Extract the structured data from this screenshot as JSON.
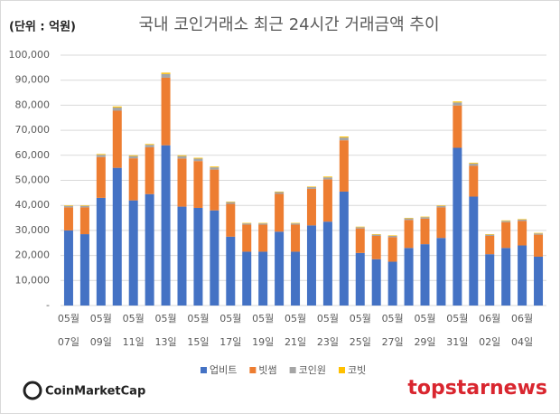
{
  "chart_data": {
    "type": "stacked_bar",
    "title": "국내 코인거래소 최근 24시간 거래금액 추이",
    "unit_label": "(단위 : 억원)",
    "categories": [
      "05월\n07일",
      null,
      "05월\n09일",
      null,
      "05월\n11일",
      null,
      "05월\n13일",
      null,
      "05월\n15일",
      null,
      "05월\n17일",
      null,
      "05월\n19일",
      null,
      "05월\n21일",
      null,
      "05월\n23일",
      null,
      "05월\n25일",
      null,
      "05월\n27일",
      null,
      "05월\n29일",
      null,
      "05월\n31일",
      null,
      "06월\n02일",
      null,
      "06월\n04일",
      null
    ],
    "series": [
      {
        "name": "업비트",
        "color": "#4472c4",
        "values": [
          30000,
          28500,
          43000,
          55000,
          42000,
          44500,
          64000,
          39500,
          39000,
          38000,
          27500,
          21500,
          21500,
          29500,
          21500,
          32000,
          33500,
          45500,
          21000,
          18500,
          17500,
          23000,
          24500,
          27000,
          63000,
          43500,
          20500,
          23000,
          24000,
          19500
        ]
      },
      {
        "name": "빗썸",
        "color": "#ed7d31",
        "values": [
          9200,
          10700,
          16300,
          22800,
          16800,
          18700,
          27000,
          19200,
          18700,
          16300,
          13100,
          10800,
          10800,
          15100,
          10800,
          14600,
          16900,
          20500,
          9800,
          9300,
          9800,
          11200,
          10200,
          12200,
          16900,
          12300,
          7300,
          10300,
          9800,
          8800
        ]
      },
      {
        "name": "코인원",
        "color": "#a5a5a5",
        "values": [
          600,
          600,
          900,
          1300,
          900,
          1000,
          1500,
          1000,
          1000,
          900,
          700,
          500,
          500,
          700,
          500,
          700,
          800,
          1100,
          500,
          500,
          500,
          600,
          600,
          600,
          1200,
          900,
          500,
          500,
          500,
          500
        ]
      },
      {
        "name": "코빗",
        "color": "#ffc000",
        "values": [
          200,
          200,
          300,
          400,
          300,
          300,
          500,
          300,
          300,
          300,
          200,
          200,
          200,
          200,
          200,
          200,
          300,
          400,
          200,
          200,
          200,
          200,
          200,
          200,
          400,
          300,
          200,
          200,
          200,
          200
        ]
      }
    ],
    "ylim": [
      0,
      100000
    ],
    "yticks": [
      {
        "value": 0,
        "label": "-"
      },
      {
        "value": 10000,
        "label": "10,000"
      },
      {
        "value": 20000,
        "label": "20,000"
      },
      {
        "value": 30000,
        "label": "30,000"
      },
      {
        "value": 40000,
        "label": "40,000"
      },
      {
        "value": 50000,
        "label": "50,000"
      },
      {
        "value": 60000,
        "label": "60,000"
      },
      {
        "value": 70000,
        "label": "70,000"
      },
      {
        "value": 80000,
        "label": "80,000"
      },
      {
        "value": 90000,
        "label": "90,000"
      },
      {
        "value": 100000,
        "label": "100,000"
      }
    ],
    "grid": true,
    "legend": "bottom"
  },
  "footer": {
    "logo": "CoinMarketCap",
    "watermark": "topstarnews"
  }
}
